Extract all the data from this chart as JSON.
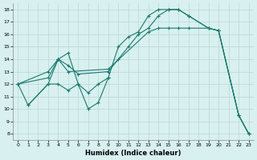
{
  "xlabel": "Humidex (Indice chaleur)",
  "xlim": [
    -0.5,
    23.5
  ],
  "ylim": [
    7.5,
    18.5
  ],
  "yticks": [
    8,
    9,
    10,
    11,
    12,
    13,
    14,
    15,
    16,
    17,
    18
  ],
  "xticks": [
    0,
    1,
    2,
    3,
    4,
    5,
    6,
    7,
    8,
    9,
    10,
    11,
    12,
    13,
    14,
    15,
    16,
    17,
    18,
    19,
    20,
    21,
    22,
    23
  ],
  "bg_color": "#d8f0f0",
  "line_color": "#1a7a6e",
  "grid_color": "#b8d8d0",
  "line1": {
    "x": [
      0,
      1,
      3,
      4,
      5,
      6,
      7,
      8,
      9,
      10,
      11,
      12,
      13,
      14,
      15,
      16,
      17,
      19,
      20,
      22,
      23
    ],
    "y": [
      12,
      10.3,
      12,
      14,
      14.5,
      12,
      10,
      10.5,
      12.5,
      15,
      15.8,
      16.2,
      17.5,
      18,
      18,
      18,
      17.5,
      16.5,
      16.3,
      9.5,
      8
    ]
  },
  "line2": {
    "x": [
      0,
      3,
      4,
      5,
      6,
      9,
      10,
      11,
      12,
      13,
      14,
      15,
      16,
      17,
      19,
      20,
      22,
      23
    ],
    "y": [
      12,
      12.5,
      14,
      13.5,
      12.8,
      13,
      14,
      15,
      16,
      16.5,
      17.5,
      18,
      18,
      17.5,
      16.5,
      16.3,
      9.5,
      8
    ]
  },
  "line3": {
    "x": [
      0,
      3,
      4,
      5,
      9,
      13,
      14,
      15,
      16,
      17,
      19,
      20,
      22,
      23
    ],
    "y": [
      12,
      13,
      14,
      13,
      13.2,
      16.2,
      16.5,
      16.5,
      16.5,
      16.5,
      16.5,
      16.3,
      9.5,
      8
    ]
  },
  "line4": {
    "x": [
      1,
      3,
      4,
      5,
      6,
      7,
      8,
      9
    ],
    "y": [
      10.3,
      12,
      12,
      11.5,
      12,
      11.3,
      12,
      12.5
    ]
  }
}
